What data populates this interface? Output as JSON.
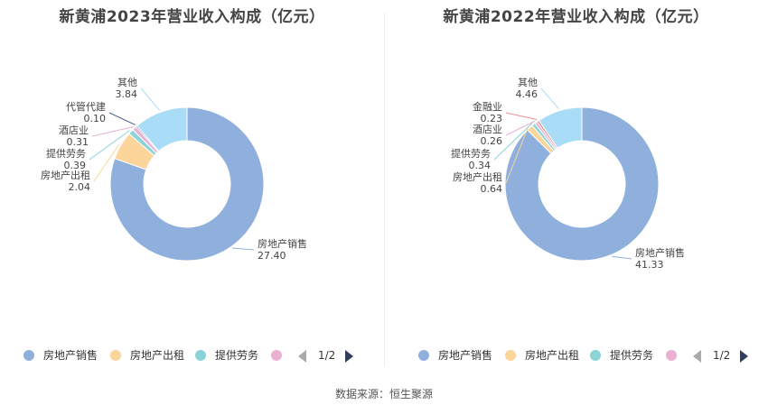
{
  "source_note": "数据来源：恒生聚源",
  "colors": {
    "房地产销售": "#8fb0dc",
    "房地产出租": "#fbd59a",
    "提供劳务": "#8ad3d9",
    "酒店业": "#e9b0d4",
    "代管代建": "#4a5f8c",
    "金融业": "#ec8f8f",
    "其他": "#a9dcf6"
  },
  "chart_data": [
    {
      "type": "pie",
      "title": "新黄浦2023年营业收入构成（亿元）",
      "categories": [
        "房地产销售",
        "房地产出租",
        "提供劳务",
        "酒店业",
        "代管代建",
        "其他"
      ],
      "values": [
        27.4,
        2.04,
        0.39,
        0.31,
        0.1,
        3.84
      ],
      "value_labels": [
        "27.40",
        "2.04",
        "0.39",
        "0.31",
        "0.10",
        "3.84"
      ],
      "legend": {
        "items": [
          "房地产销售",
          "房地产出租",
          "提供劳务",
          ""
        ],
        "page": "1/2",
        "placement": "bottom"
      }
    },
    {
      "type": "pie",
      "title": "新黄浦2022年营业收入构成（亿元）",
      "categories": [
        "房地产销售",
        "房地产出租",
        "提供劳务",
        "酒店业",
        "金融业",
        "其他"
      ],
      "values": [
        41.33,
        0.64,
        0.34,
        0.26,
        0.23,
        4.46
      ],
      "value_labels": [
        "41.33",
        "0.64",
        "0.34",
        "0.26",
        "0.23",
        "4.46"
      ],
      "legend": {
        "items": [
          "房地产销售",
          "房地产出租",
          "提供劳务",
          ""
        ],
        "page": "1/2",
        "placement": "bottom"
      }
    }
  ]
}
